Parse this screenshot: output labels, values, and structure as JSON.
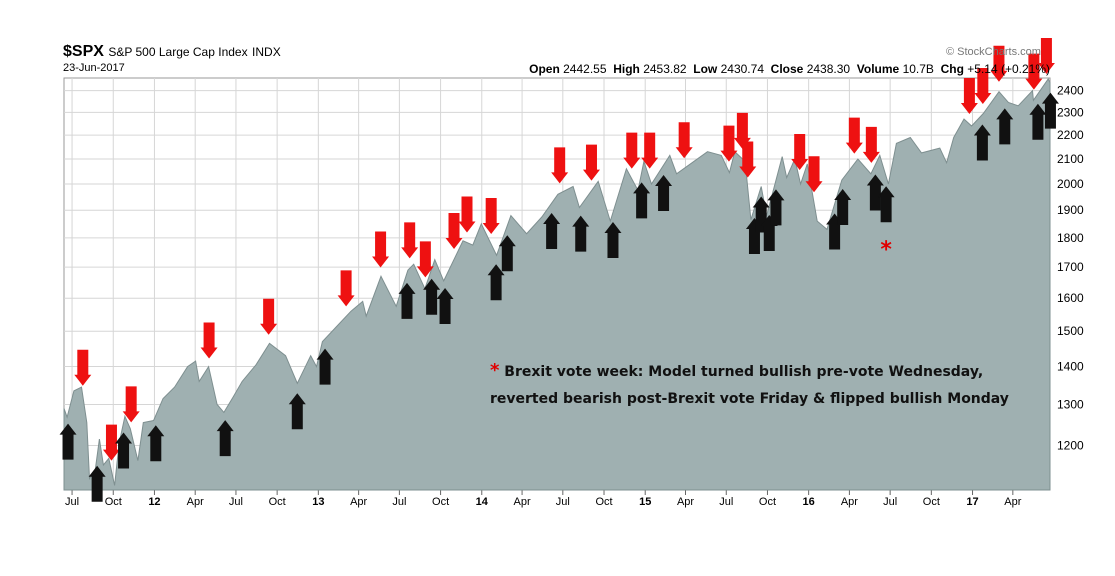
{
  "header": {
    "symbol": "$SPX",
    "name": "S&P 500 Large Cap Index",
    "exchange": "INDX",
    "date": "23-Jun-2017",
    "source": "© StockCharts.com",
    "open_label": "Open",
    "open": "2442.55",
    "high_label": "High",
    "high": "2453.82",
    "low_label": "Low",
    "low": "2430.74",
    "close_label": "Close",
    "close": "2438.30",
    "volume_label": "Volume",
    "volume": "10.7B",
    "chg_label": "Chg",
    "chg": "+5.14 (+0.21%)"
  },
  "annotation": {
    "star": "*",
    "line1": "Brexit vote week: Model turned bullish pre-vote Wednesday,",
    "line2": "reverted bearish post-Brexit vote Friday & flipped bullish Monday"
  },
  "colors": {
    "area": "#9fb0b1",
    "area_edge": "#7e8f90",
    "grid": "#d6d6d6",
    "sell_arrow": "#ee1111",
    "buy_arrow": "#111111",
    "brexit_star": "#e00000"
  },
  "chart_data": {
    "type": "area",
    "scale": "log",
    "ylim": [
      1100,
      2460
    ],
    "yticks": [
      1200,
      1300,
      1400,
      1500,
      1600,
      1700,
      1800,
      1900,
      2000,
      2100,
      2200,
      2300,
      2400
    ],
    "y_axis_side": "right",
    "grid": true,
    "xlim": [
      "2011-06-13",
      "2017-06-23"
    ],
    "x_ticks": [
      {
        "date": "2011-07-01",
        "label": "Jul",
        "bold": false
      },
      {
        "date": "2011-10-01",
        "label": "Oct",
        "bold": false
      },
      {
        "date": "2012-01-01",
        "label": "12",
        "bold": true
      },
      {
        "date": "2012-04-01",
        "label": "Apr",
        "bold": false
      },
      {
        "date": "2012-07-01",
        "label": "Jul",
        "bold": false
      },
      {
        "date": "2012-10-01",
        "label": "Oct",
        "bold": false
      },
      {
        "date": "2013-01-01",
        "label": "13",
        "bold": true
      },
      {
        "date": "2013-04-01",
        "label": "Apr",
        "bold": false
      },
      {
        "date": "2013-07-01",
        "label": "Jul",
        "bold": false
      },
      {
        "date": "2013-10-01",
        "label": "Oct",
        "bold": false
      },
      {
        "date": "2014-01-01",
        "label": "14",
        "bold": true
      },
      {
        "date": "2014-04-01",
        "label": "Apr",
        "bold": false
      },
      {
        "date": "2014-07-01",
        "label": "Jul",
        "bold": false
      },
      {
        "date": "2014-10-01",
        "label": "Oct",
        "bold": false
      },
      {
        "date": "2015-01-01",
        "label": "15",
        "bold": true
      },
      {
        "date": "2015-04-01",
        "label": "Apr",
        "bold": false
      },
      {
        "date": "2015-07-01",
        "label": "Jul",
        "bold": false
      },
      {
        "date": "2015-10-01",
        "label": "Oct",
        "bold": false
      },
      {
        "date": "2016-01-01",
        "label": "16",
        "bold": true
      },
      {
        "date": "2016-04-01",
        "label": "Apr",
        "bold": false
      },
      {
        "date": "2016-07-01",
        "label": "Jul",
        "bold": false
      },
      {
        "date": "2016-10-01",
        "label": "Oct",
        "bold": false
      },
      {
        "date": "2017-01-01",
        "label": "17",
        "bold": true
      },
      {
        "date": "2017-04-01",
        "label": "Apr",
        "bold": false
      }
    ],
    "series": [
      {
        "values": [
          [
            "2011-06-13",
            1290
          ],
          [
            "2011-06-20",
            1268
          ],
          [
            "2011-07-05",
            1335
          ],
          [
            "2011-07-22",
            1345
          ],
          [
            "2011-08-03",
            1255
          ],
          [
            "2011-08-09",
            1125
          ],
          [
            "2011-08-22",
            1145
          ],
          [
            "2011-08-31",
            1215
          ],
          [
            "2011-09-09",
            1155
          ],
          [
            "2011-09-21",
            1170
          ],
          [
            "2011-10-04",
            1110
          ],
          [
            "2011-10-14",
            1205
          ],
          [
            "2011-10-27",
            1270
          ],
          [
            "2011-11-08",
            1240
          ],
          [
            "2011-11-25",
            1165
          ],
          [
            "2011-12-07",
            1255
          ],
          [
            "2011-12-30",
            1260
          ],
          [
            "2012-01-20",
            1315
          ],
          [
            "2012-02-15",
            1345
          ],
          [
            "2012-03-15",
            1400
          ],
          [
            "2012-04-02",
            1415
          ],
          [
            "2012-04-10",
            1360
          ],
          [
            "2012-05-01",
            1400
          ],
          [
            "2012-05-20",
            1300
          ],
          [
            "2012-06-04",
            1280
          ],
          [
            "2012-06-25",
            1320
          ],
          [
            "2012-07-15",
            1360
          ],
          [
            "2012-08-15",
            1405
          ],
          [
            "2012-09-14",
            1465
          ],
          [
            "2012-10-20",
            1430
          ],
          [
            "2012-11-15",
            1355
          ],
          [
            "2012-12-15",
            1430
          ],
          [
            "2012-12-28",
            1400
          ],
          [
            "2013-01-10",
            1470
          ],
          [
            "2013-02-15",
            1520
          ],
          [
            "2013-03-15",
            1560
          ],
          [
            "2013-04-10",
            1590
          ],
          [
            "2013-04-18",
            1545
          ],
          [
            "2013-05-21",
            1670
          ],
          [
            "2013-06-24",
            1575
          ],
          [
            "2013-07-20",
            1690
          ],
          [
            "2013-08-02",
            1710
          ],
          [
            "2013-08-27",
            1630
          ],
          [
            "2013-09-18",
            1725
          ],
          [
            "2013-10-08",
            1655
          ],
          [
            "2013-11-20",
            1790
          ],
          [
            "2013-12-12",
            1775
          ],
          [
            "2013-12-31",
            1850
          ],
          [
            "2014-02-03",
            1740
          ],
          [
            "2014-03-07",
            1880
          ],
          [
            "2014-04-11",
            1815
          ],
          [
            "2014-05-15",
            1875
          ],
          [
            "2014-06-20",
            1960
          ],
          [
            "2014-07-24",
            1990
          ],
          [
            "2014-08-07",
            1910
          ],
          [
            "2014-09-18",
            2010
          ],
          [
            "2014-10-15",
            1860
          ],
          [
            "2014-11-20",
            2060
          ],
          [
            "2014-12-16",
            1975
          ],
          [
            "2014-12-29",
            2090
          ],
          [
            "2015-01-15",
            2000
          ],
          [
            "2015-02-25",
            2115
          ],
          [
            "2015-03-12",
            2040
          ],
          [
            "2015-05-20",
            2130
          ],
          [
            "2015-06-20",
            2115
          ],
          [
            "2015-07-08",
            2045
          ],
          [
            "2015-07-20",
            2130
          ],
          [
            "2015-08-12",
            2090
          ],
          [
            "2015-08-25",
            1865
          ],
          [
            "2015-09-17",
            1990
          ],
          [
            "2015-09-29",
            1880
          ],
          [
            "2015-11-03",
            2110
          ],
          [
            "2015-11-13",
            2025
          ],
          [
            "2015-12-01",
            2100
          ],
          [
            "2015-12-14",
            2000
          ],
          [
            "2015-12-29",
            2080
          ],
          [
            "2016-01-20",
            1860
          ],
          [
            "2016-02-11",
            1830
          ],
          [
            "2016-03-15",
            2015
          ],
          [
            "2016-04-20",
            2100
          ],
          [
            "2016-05-19",
            2040
          ],
          [
            "2016-06-08",
            2115
          ],
          [
            "2016-06-27",
            2000
          ],
          [
            "2016-07-15",
            2165
          ],
          [
            "2016-08-15",
            2190
          ],
          [
            "2016-09-09",
            2125
          ],
          [
            "2016-10-20",
            2145
          ],
          [
            "2016-11-04",
            2085
          ],
          [
            "2016-11-20",
            2190
          ],
          [
            "2016-12-13",
            2270
          ],
          [
            "2016-12-30",
            2240
          ],
          [
            "2017-01-25",
            2295
          ],
          [
            "2017-03-01",
            2395
          ],
          [
            "2017-03-22",
            2345
          ],
          [
            "2017-04-13",
            2330
          ],
          [
            "2017-05-15",
            2400
          ],
          [
            "2017-05-17",
            2355
          ],
          [
            "2017-06-19",
            2455
          ],
          [
            "2017-06-23",
            2438
          ]
        ]
      }
    ],
    "annotations": {
      "sell_arrows": [
        "2011-07-25",
        "2011-09-27",
        "2011-11-10",
        "2012-05-02",
        "2012-09-12",
        "2013-03-04",
        "2013-05-20",
        "2013-07-24",
        "2013-08-28",
        "2013-10-31",
        "2013-11-29",
        "2014-01-22",
        "2014-06-24",
        "2014-09-03",
        "2014-12-02",
        "2015-01-11",
        "2015-03-29",
        "2015-07-07",
        "2015-08-06",
        "2015-08-18",
        "2015-12-12",
        "2016-01-13",
        "2016-04-12",
        "2016-05-20",
        "2016-12-25",
        "2017-01-24",
        "2017-03-01",
        "2017-05-18",
        "2017-06-15"
      ],
      "buy_arrows": [
        "2011-06-22",
        "2011-08-26",
        "2011-10-24",
        "2012-01-04",
        "2012-06-07",
        "2012-11-15",
        "2013-01-16",
        "2013-07-18",
        "2013-09-11",
        "2013-10-11",
        "2014-02-02",
        "2014-02-27",
        "2014-06-06",
        "2014-08-10",
        "2014-10-21",
        "2014-12-24",
        "2015-02-11",
        "2015-09-02",
        "2015-09-17",
        "2015-10-05",
        "2015-10-20",
        "2016-02-28",
        "2016-03-17",
        "2016-05-29",
        "2016-06-22",
        "2017-01-23",
        "2017-03-14",
        "2017-05-27",
        "2017-06-24"
      ],
      "brexit_star_date": "2016-06-22"
    }
  }
}
